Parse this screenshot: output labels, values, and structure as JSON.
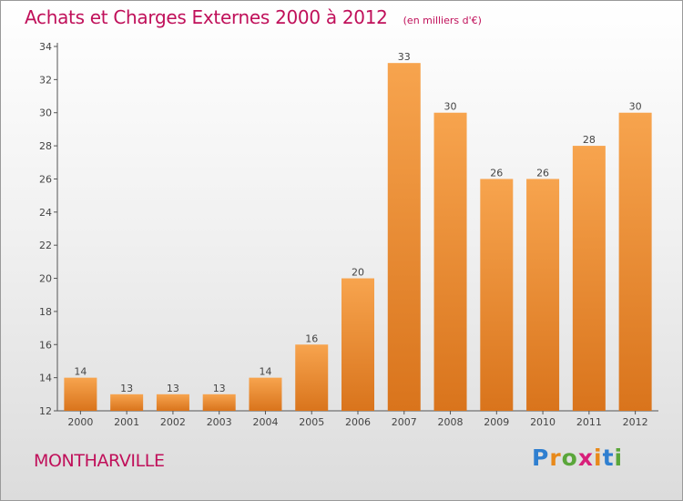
{
  "title": "Achats et Charges Externes 2000 à 2012",
  "subtitle": "(en milliers d'€)",
  "place": "MONTHARVILLE",
  "logo": {
    "text": "Proxiti",
    "letter_colors": [
      "#2f7fd0",
      "#e8891a",
      "#5aa63a",
      "#d81f7a",
      "#e8891a",
      "#2f7fd0",
      "#5aa63a"
    ]
  },
  "colors": {
    "title": "#c0105a",
    "bar_light": "#f7a44e",
    "bar_dark": "#d9741c",
    "axis": "#555555"
  },
  "chart_data": {
    "type": "bar",
    "title": "Achats et Charges Externes 2000 à 2012",
    "subtitle": "(en milliers d'€)",
    "categories": [
      "2000",
      "2001",
      "2002",
      "2003",
      "2004",
      "2005",
      "2006",
      "2007",
      "2008",
      "2009",
      "2010",
      "2011",
      "2012"
    ],
    "values": [
      14,
      13,
      13,
      13,
      14,
      16,
      20,
      33,
      30,
      26,
      26,
      28,
      30
    ],
    "ylim": [
      12,
      34
    ],
    "yticks": [
      12,
      14,
      16,
      18,
      20,
      22,
      24,
      26,
      28,
      30,
      32,
      34
    ],
    "grid": false,
    "legend": "none"
  }
}
